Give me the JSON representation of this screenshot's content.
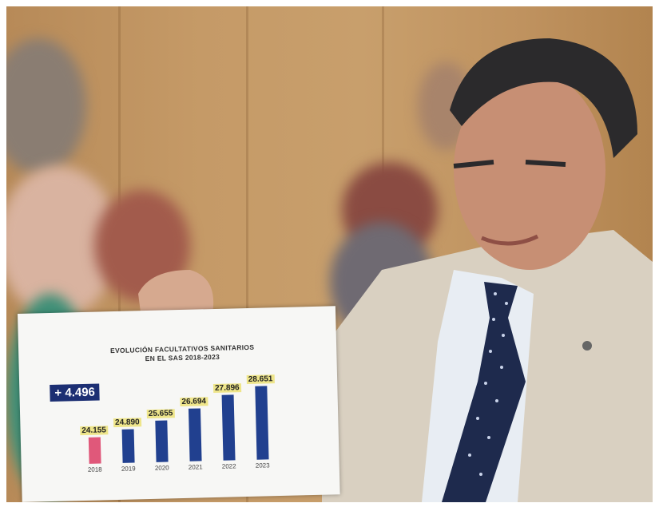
{
  "sheet": {
    "title_line1": "EVOLUCIÓN FACULTATIVOS SANITARIOS",
    "title_line2": "EN EL SAS 2018-2023",
    "delta": "+ 4.496"
  },
  "chart_data": {
    "type": "bar",
    "title": "EVOLUCIÓN FACULTATIVOS SANITARIOS EN EL SAS 2018-2023",
    "categories": [
      "2018",
      "2019",
      "2020",
      "2021",
      "2022",
      "2023"
    ],
    "values": [
      24155,
      24890,
      25655,
      26694,
      27896,
      28651
    ],
    "value_labels": [
      "24.155",
      "24.890",
      "25.655",
      "26.694",
      "27.896",
      "28.651"
    ],
    "colors": [
      "#e0587a",
      "#21408f",
      "#21408f",
      "#21408f",
      "#21408f",
      "#21408f"
    ],
    "grid": false
  }
}
